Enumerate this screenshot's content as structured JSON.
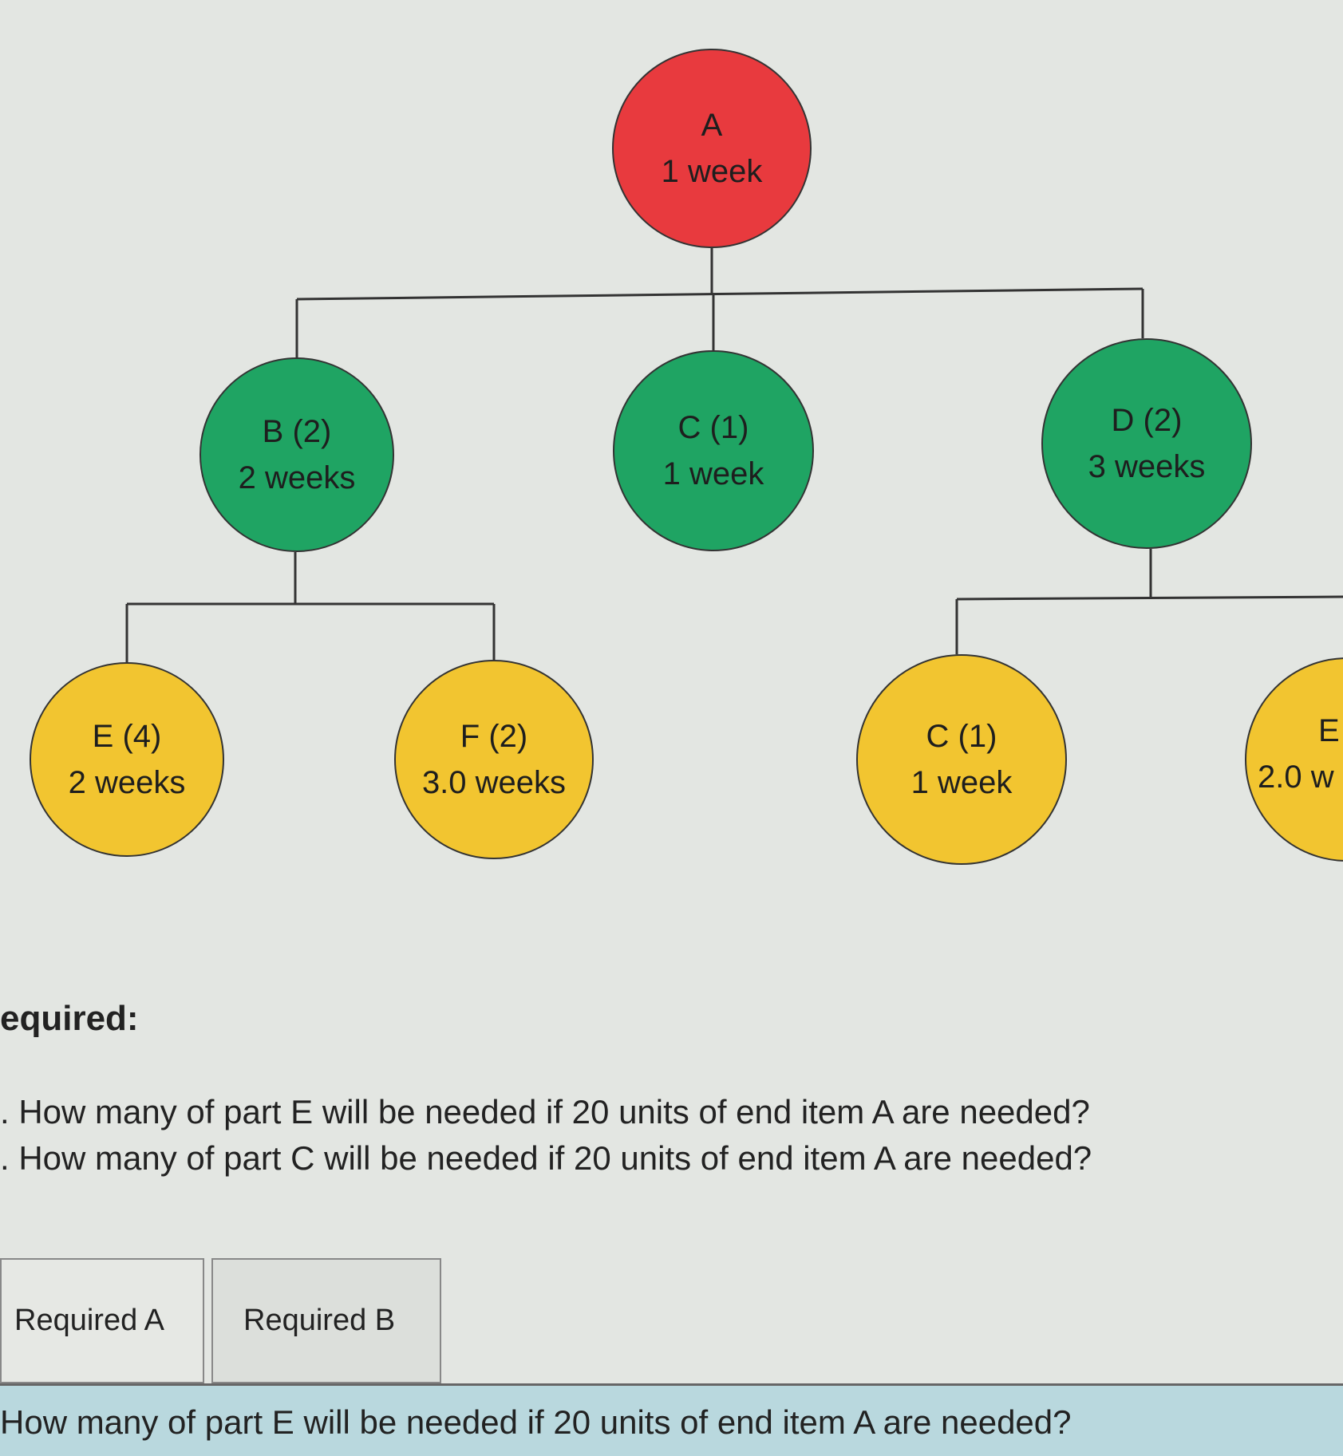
{
  "tree": {
    "nodes": [
      {
        "id": "A",
        "label": "A",
        "time": "1 week",
        "color": "#e83a3e"
      },
      {
        "id": "B",
        "label": "B (2)",
        "time": "2 weeks",
        "color": "#1fa463"
      },
      {
        "id": "C",
        "label": "C (1)",
        "time": "1 week",
        "color": "#1fa463"
      },
      {
        "id": "D",
        "label": "D (2)",
        "time": "3 weeks",
        "color": "#1fa463"
      },
      {
        "id": "E",
        "label": "E (4)",
        "time": "2 weeks",
        "color": "#f2c530"
      },
      {
        "id": "F",
        "label": "F (2)",
        "time": "3.0 weeks",
        "color": "#f2c530"
      },
      {
        "id": "C2",
        "label": "C (1)",
        "time": "1 week",
        "color": "#f2c530"
      },
      {
        "id": "E2",
        "label": "E",
        "time": "2.0 w",
        "color": "#f2c530"
      }
    ]
  },
  "required": {
    "heading": "equired:",
    "questions": [
      ". How many of part E will be needed if 20 units of end item A are needed?",
      ". How many of part C will be needed if 20 units of end item A are needed?"
    ]
  },
  "tabs": [
    "Required A",
    "Required B"
  ],
  "answer_prompt": "How many of part E will be needed if 20 units of end item A are needed?"
}
